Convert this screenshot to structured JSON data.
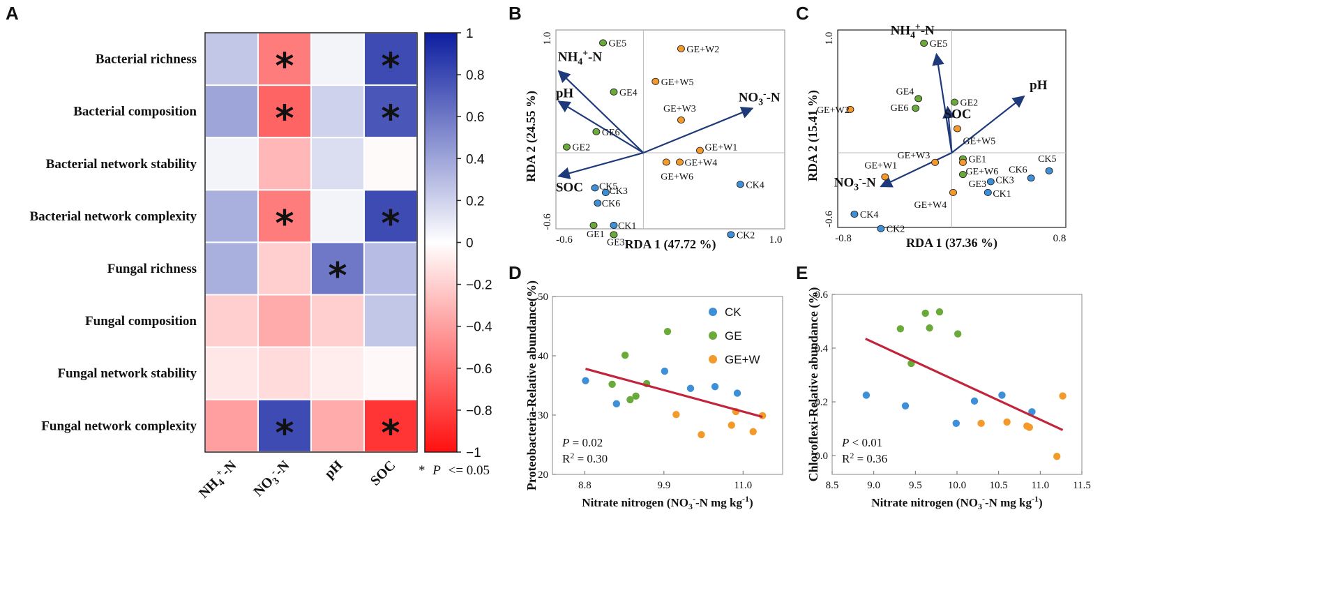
{
  "colors": {
    "ck": "#3d8fd8",
    "ge": "#6aaa3a",
    "gew": "#f39a2b",
    "arrow": "#1f3a7a",
    "fit": "#c2243b",
    "pos": "#0d1ea0",
    "neg": "#ff1010"
  },
  "panels": {
    "a": "A",
    "b": "B",
    "c": "C",
    "d": "D",
    "e": "E"
  },
  "chart_data": [
    {
      "id": "A",
      "type": "heatmap",
      "rows": [
        "Bacterial richness",
        "Bacterial composition",
        "Bacterial network stability",
        "Bacterial network complexity",
        "Fungal richness",
        "Fungal composition",
        "Fungal network stability",
        "Fungal network complexity"
      ],
      "columns": [
        "NH4+-N",
        "NO3--N",
        "pH",
        "SOC"
      ],
      "values": [
        [
          0.25,
          -0.55,
          0.05,
          0.8
        ],
        [
          0.4,
          -0.65,
          0.2,
          0.75
        ],
        [
          0.05,
          -0.3,
          0.15,
          -0.02
        ],
        [
          0.35,
          -0.55,
          0.05,
          0.8
        ],
        [
          0.35,
          -0.2,
          0.6,
          0.3
        ],
        [
          -0.2,
          -0.35,
          -0.2,
          0.25
        ],
        [
          -0.1,
          -0.15,
          -0.08,
          -0.03
        ],
        [
          -0.4,
          0.8,
          -0.35,
          -0.85
        ]
      ],
      "significant": [
        [
          false,
          true,
          false,
          true
        ],
        [
          false,
          true,
          false,
          true
        ],
        [
          false,
          false,
          false,
          false
        ],
        [
          false,
          true,
          false,
          true
        ],
        [
          false,
          false,
          true,
          false
        ],
        [
          false,
          false,
          false,
          false
        ],
        [
          false,
          false,
          false,
          false
        ],
        [
          false,
          true,
          false,
          true
        ]
      ],
      "colorbar": {
        "ticks": [
          "1",
          "0.8",
          "0.6",
          "0.4",
          "0.2",
          "0",
          "−0.2",
          "−0.4",
          "−0.6",
          "−0.8",
          "−1"
        ],
        "range": [
          -1,
          1
        ]
      },
      "note_star": "*",
      "note_p": "P",
      "note_rest": "<= 0.05"
    },
    {
      "id": "B",
      "type": "scatter",
      "xlabel": "RDA 1 (47.72 %)",
      "ylabel": "RDA 2 (24.55 %)",
      "xlim": [
        -0.65,
        1.05
      ],
      "ylim": [
        -0.65,
        1.05
      ],
      "xticks": [
        "-0.6",
        "1.0"
      ],
      "yticks": [
        "1.0",
        "-0.6"
      ],
      "points": [
        {
          "label": "GE5",
          "g": "ge",
          "x": -0.3,
          "y": 0.94
        },
        {
          "label": "GE4",
          "g": "ge",
          "x": -0.22,
          "y": 0.52
        },
        {
          "label": "GE6",
          "g": "ge",
          "x": -0.35,
          "y": 0.18
        },
        {
          "label": "GE2",
          "g": "ge",
          "x": -0.57,
          "y": 0.05
        },
        {
          "label": "GE1",
          "g": "ge",
          "x": -0.37,
          "y": -0.62
        },
        {
          "label": "GE3",
          "g": "ge",
          "x": -0.22,
          "y": -0.7
        },
        {
          "label": "CK1",
          "g": "ck",
          "x": -0.22,
          "y": -0.62
        },
        {
          "label": "CK5",
          "g": "ck",
          "x": -0.36,
          "y": -0.3
        },
        {
          "label": "CK6",
          "g": "ck",
          "x": -0.34,
          "y": -0.43
        },
        {
          "label": "CK3",
          "g": "ck",
          "x": -0.28,
          "y": -0.34
        },
        {
          "label": "CK4",
          "g": "ck",
          "x": 0.72,
          "y": -0.27
        },
        {
          "label": "CK2",
          "g": "ck",
          "x": 0.65,
          "y": -0.7
        },
        {
          "label": "GE+W2",
          "g": "gew",
          "x": 0.28,
          "y": 0.89
        },
        {
          "label": "GE+W5",
          "g": "gew",
          "x": 0.09,
          "y": 0.61
        },
        {
          "label": "GE+W3",
          "g": "gew",
          "x": 0.28,
          "y": 0.28
        },
        {
          "label": "GE+W1",
          "g": "gew",
          "x": 0.42,
          "y": 0.02
        },
        {
          "label": "GE+W4",
          "g": "gew",
          "x": 0.27,
          "y": -0.08
        },
        {
          "label": "GE+W6",
          "g": "gew",
          "x": 0.17,
          "y": -0.08
        }
      ],
      "vectors": [
        {
          "label": "NH4+-N",
          "x": -0.63,
          "y": 0.7
        },
        {
          "label": "pH",
          "x": -0.63,
          "y": 0.44
        },
        {
          "label": "SOC",
          "x": -0.63,
          "y": -0.2
        },
        {
          "label": "NO3--N",
          "x": 0.81,
          "y": 0.38
        }
      ]
    },
    {
      "id": "C",
      "type": "scatter",
      "xlabel": "RDA 1 (37.36 %)",
      "ylabel": "RDA 2 (15.41 %)",
      "xlim": [
        -0.82,
        0.82
      ],
      "ylim": [
        -0.62,
        1.02
      ],
      "xticks": [
        "-0.8",
        "0.8"
      ],
      "yticks": [
        "1.0",
        "-0.6"
      ],
      "points": [
        {
          "label": "GE5",
          "g": "ge",
          "x": -0.2,
          "y": 0.91
        },
        {
          "label": "GE4",
          "g": "ge",
          "x": -0.24,
          "y": 0.45
        },
        {
          "label": "GE6",
          "g": "ge",
          "x": -0.26,
          "y": 0.37
        },
        {
          "label": "GE2",
          "g": "ge",
          "x": 0.02,
          "y": 0.42
        },
        {
          "label": "GE1",
          "g": "ge",
          "x": 0.08,
          "y": -0.05
        },
        {
          "label": "GE3",
          "g": "ge",
          "x": 0.08,
          "y": -0.18
        },
        {
          "label": "GE+W2",
          "g": "gew",
          "x": -0.73,
          "y": 0.36
        },
        {
          "label": "GE+W5",
          "g": "gew",
          "x": 0.04,
          "y": 0.2
        },
        {
          "label": "GE+W3",
          "g": "gew",
          "x": -0.12,
          "y": -0.08
        },
        {
          "label": "GE+W1",
          "g": "gew",
          "x": -0.48,
          "y": -0.2
        },
        {
          "label": "GE+W6",
          "g": "gew",
          "x": 0.08,
          "y": -0.08
        },
        {
          "label": "GE+W4",
          "g": "gew",
          "x": 0.01,
          "y": -0.33
        },
        {
          "label": "CK3",
          "g": "ck",
          "x": 0.28,
          "y": -0.24
        },
        {
          "label": "CK1",
          "g": "ck",
          "x": 0.26,
          "y": -0.33
        },
        {
          "label": "CK6",
          "g": "ck",
          "x": 0.57,
          "y": -0.21
        },
        {
          "label": "CK5",
          "g": "ck",
          "x": 0.7,
          "y": -0.15
        },
        {
          "label": "CK4",
          "g": "ck",
          "x": -0.7,
          "y": -0.51
        },
        {
          "label": "CK2",
          "g": "ck",
          "x": -0.51,
          "y": -0.63
        }
      ],
      "vectors": [
        {
          "label": "NH4+-N",
          "x": -0.11,
          "y": 0.82
        },
        {
          "label": "pH",
          "x": 0.52,
          "y": 0.47
        },
        {
          "label": "SOC",
          "x": -0.03,
          "y": 0.38
        },
        {
          "label": "NO3--N",
          "x": -0.51,
          "y": -0.28
        }
      ]
    },
    {
      "id": "D",
      "type": "scatter",
      "xlabel": "Nitrate nitrogen (NO3--N  mg kg-1)",
      "ylabel": "Proteobacteria-Relative abundance(%)",
      "xlim": [
        8.35,
        11.55
      ],
      "ylim": [
        20,
        50
      ],
      "xticks": [
        "8.8",
        "9.9",
        "11.0"
      ],
      "yticks": [
        "50",
        "40",
        "30",
        "20"
      ],
      "legend": [
        "CK",
        "GE",
        "GE+W"
      ],
      "points": [
        {
          "g": "ck",
          "x": 8.81,
          "y": 35.8
        },
        {
          "g": "ck",
          "x": 9.24,
          "y": 31.9
        },
        {
          "g": "ck",
          "x": 9.91,
          "y": 37.4
        },
        {
          "g": "ck",
          "x": 10.27,
          "y": 34.5
        },
        {
          "g": "ck",
          "x": 10.61,
          "y": 34.8
        },
        {
          "g": "ck",
          "x": 10.92,
          "y": 33.7
        },
        {
          "g": "ge",
          "x": 9.18,
          "y": 35.2
        },
        {
          "g": "ge",
          "x": 9.36,
          "y": 40.1
        },
        {
          "g": "ge",
          "x": 9.43,
          "y": 32.6
        },
        {
          "g": "ge",
          "x": 9.51,
          "y": 33.2
        },
        {
          "g": "ge",
          "x": 9.66,
          "y": 35.3
        },
        {
          "g": "ge",
          "x": 9.95,
          "y": 44.1
        },
        {
          "g": "gew",
          "x": 10.07,
          "y": 30.1
        },
        {
          "g": "gew",
          "x": 10.42,
          "y": 26.7
        },
        {
          "g": "gew",
          "x": 10.84,
          "y": 28.3
        },
        {
          "g": "gew",
          "x": 10.9,
          "y": 30.6
        },
        {
          "g": "gew",
          "x": 11.14,
          "y": 27.2
        },
        {
          "g": "gew",
          "x": 11.27,
          "y": 29.9
        }
      ],
      "fit": {
        "x": [
          8.81,
          11.27
        ],
        "y": [
          37.8,
          29.7
        ]
      },
      "p_label": "P",
      "p_value": "= 0.02",
      "r2_label": "R",
      "r2_value": "= 0.30"
    },
    {
      "id": "E",
      "type": "scatter",
      "xlabel": "Nitrate nitrogen (NO3--N  mg kg-1)",
      "ylabel": "Chloroflexi-Relative abundance (%)",
      "xlim": [
        8.5,
        11.5
      ],
      "ylim": [
        -0.07,
        0.6
      ],
      "xticks": [
        "8.5",
        "9.0",
        "9.5",
        "10.0",
        "10.5",
        "11.0",
        "11.5"
      ],
      "yticks": [
        "0.6",
        "0.4",
        "0.2",
        "0.0"
      ],
      "points": [
        {
          "g": "ck",
          "x": 8.91,
          "y": 0.225
        },
        {
          "g": "ck",
          "x": 9.38,
          "y": 0.185
        },
        {
          "g": "ck",
          "x": 9.99,
          "y": 0.12
        },
        {
          "g": "ck",
          "x": 10.21,
          "y": 0.203
        },
        {
          "g": "ck",
          "x": 10.54,
          "y": 0.225
        },
        {
          "g": "ck",
          "x": 10.9,
          "y": 0.163
        },
        {
          "g": "ge",
          "x": 9.32,
          "y": 0.472
        },
        {
          "g": "ge",
          "x": 9.45,
          "y": 0.343
        },
        {
          "g": "ge",
          "x": 9.62,
          "y": 0.53
        },
        {
          "g": "ge",
          "x": 9.67,
          "y": 0.475
        },
        {
          "g": "ge",
          "x": 9.79,
          "y": 0.535
        },
        {
          "g": "ge",
          "x": 10.01,
          "y": 0.453
        },
        {
          "g": "gew",
          "x": 10.29,
          "y": 0.12
        },
        {
          "g": "gew",
          "x": 10.6,
          "y": 0.125
        },
        {
          "g": "gew",
          "x": 10.84,
          "y": 0.11
        },
        {
          "g": "gew",
          "x": 10.87,
          "y": 0.105
        },
        {
          "g": "gew",
          "x": 11.2,
          "y": -0.003
        },
        {
          "g": "gew",
          "x": 11.27,
          "y": 0.222
        }
      ],
      "fit": {
        "x": [
          8.9,
          11.27
        ],
        "y": [
          0.435,
          0.095
        ]
      },
      "p_label": "P",
      "p_value": "< 0.01",
      "r2_label": "R",
      "r2_value": "= 0.36"
    }
  ]
}
